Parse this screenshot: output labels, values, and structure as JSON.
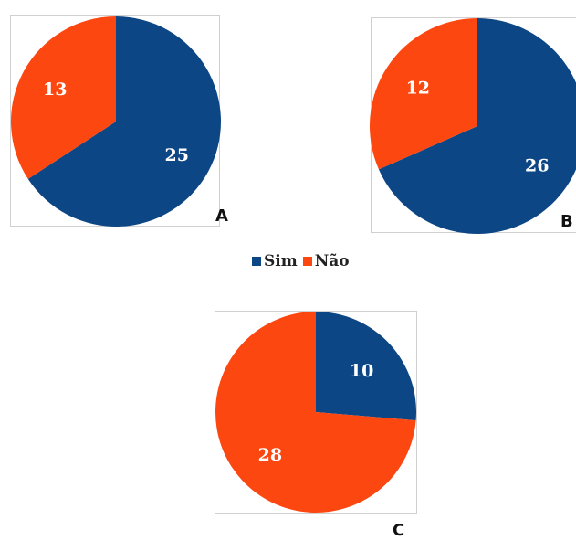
{
  "legend": {
    "items": [
      {
        "label": "Sim",
        "color": "#0d4684"
      },
      {
        "label": "Não",
        "color": "#fc4711"
      }
    ]
  },
  "chart_data": [
    {
      "type": "pie",
      "panel_label": "A",
      "slices": [
        {
          "label": "Sim",
          "value": 25,
          "color": "#0d4684"
        },
        {
          "label": "Não",
          "value": 13,
          "color": "#fc4711"
        }
      ]
    },
    {
      "type": "pie",
      "panel_label": "B",
      "slices": [
        {
          "label": "Sim",
          "value": 26,
          "color": "#0d4684"
        },
        {
          "label": "Não",
          "value": 12,
          "color": "#fc4711"
        }
      ]
    },
    {
      "type": "pie",
      "panel_label": "C",
      "slices": [
        {
          "label": "Sim",
          "value": 10,
          "color": "#0d4684"
        },
        {
          "label": "Não",
          "value": 28,
          "color": "#fc4711"
        }
      ]
    }
  ]
}
